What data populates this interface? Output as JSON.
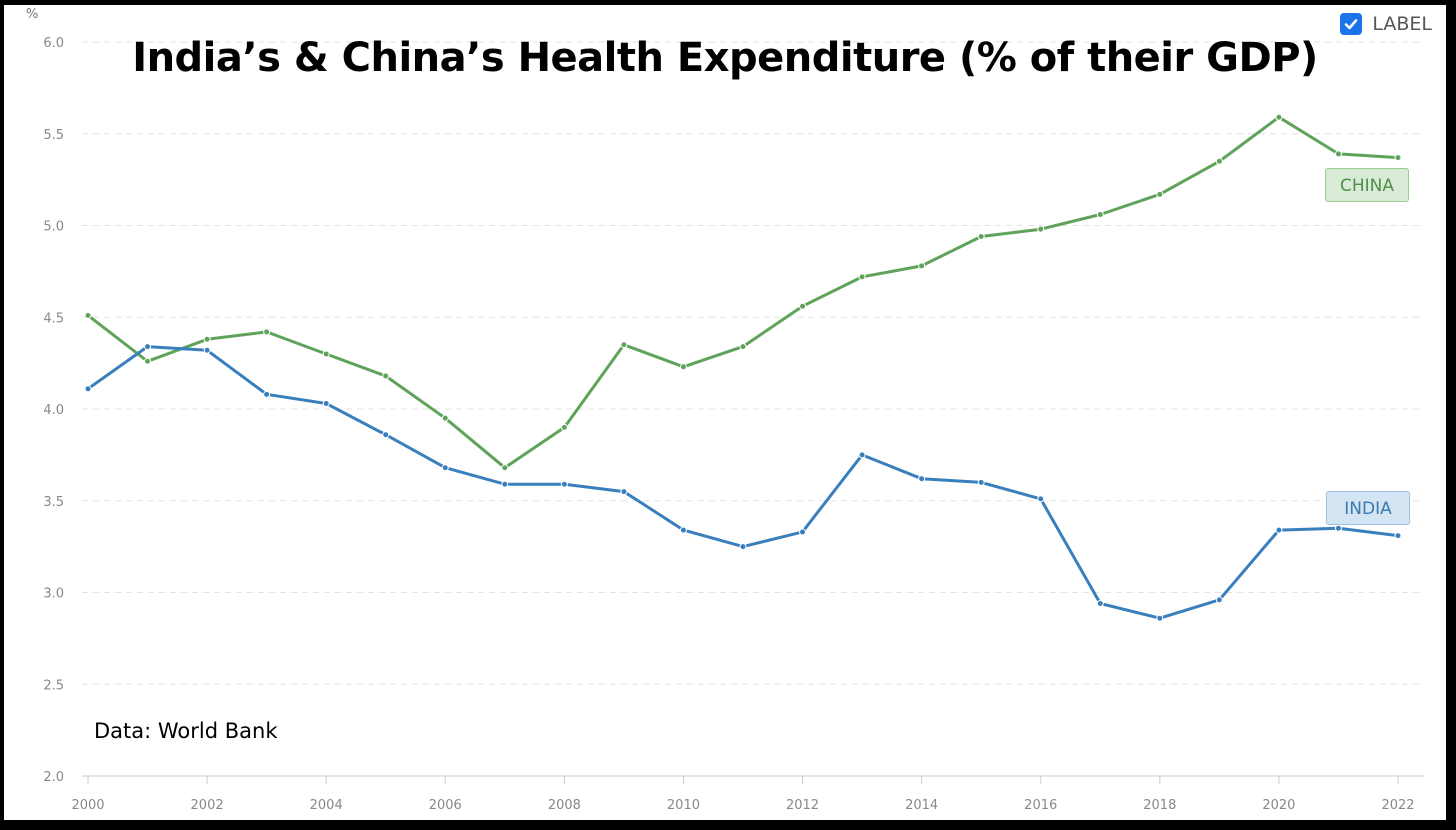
{
  "chart_data": {
    "type": "line",
    "title": "India’s & China’s Health Expenditure (% of their GDP)",
    "ylabel": "%",
    "xlabel": "",
    "ylim": [
      2.0,
      6.0
    ],
    "xlim": [
      2000,
      2022
    ],
    "y_ticks": [
      "2.0",
      "2.5",
      "3.0",
      "3.5",
      "4.0",
      "4.5",
      "5.0",
      "5.5",
      "6.0"
    ],
    "x_ticks": [
      "2000",
      "2002",
      "2004",
      "2006",
      "2008",
      "2010",
      "2012",
      "2014",
      "2016",
      "2018",
      "2020",
      "2022"
    ],
    "grid": true,
    "x": [
      2000,
      2001,
      2002,
      2003,
      2004,
      2005,
      2006,
      2007,
      2008,
      2009,
      2010,
      2011,
      2012,
      2013,
      2014,
      2015,
      2016,
      2017,
      2018,
      2019,
      2020,
      2021,
      2022
    ],
    "series": [
      {
        "name": "CHINA",
        "color": "#5fa35a",
        "values": [
          4.51,
          4.26,
          4.38,
          4.42,
          4.3,
          4.18,
          3.95,
          3.68,
          3.9,
          4.35,
          4.23,
          4.34,
          4.56,
          4.72,
          4.78,
          4.94,
          4.98,
          5.06,
          5.17,
          5.35,
          5.59,
          5.39,
          5.37
        ]
      },
      {
        "name": "INDIA",
        "color": "#3a7fbd",
        "values": [
          4.11,
          4.34,
          4.32,
          4.08,
          4.03,
          3.86,
          3.68,
          3.59,
          3.59,
          3.55,
          3.34,
          3.25,
          3.33,
          3.75,
          3.62,
          3.6,
          3.51,
          2.94,
          2.86,
          2.96,
          3.34,
          3.35,
          3.31
        ]
      }
    ],
    "legend_toggle_label": "LABEL",
    "source": "Data: World Bank"
  }
}
